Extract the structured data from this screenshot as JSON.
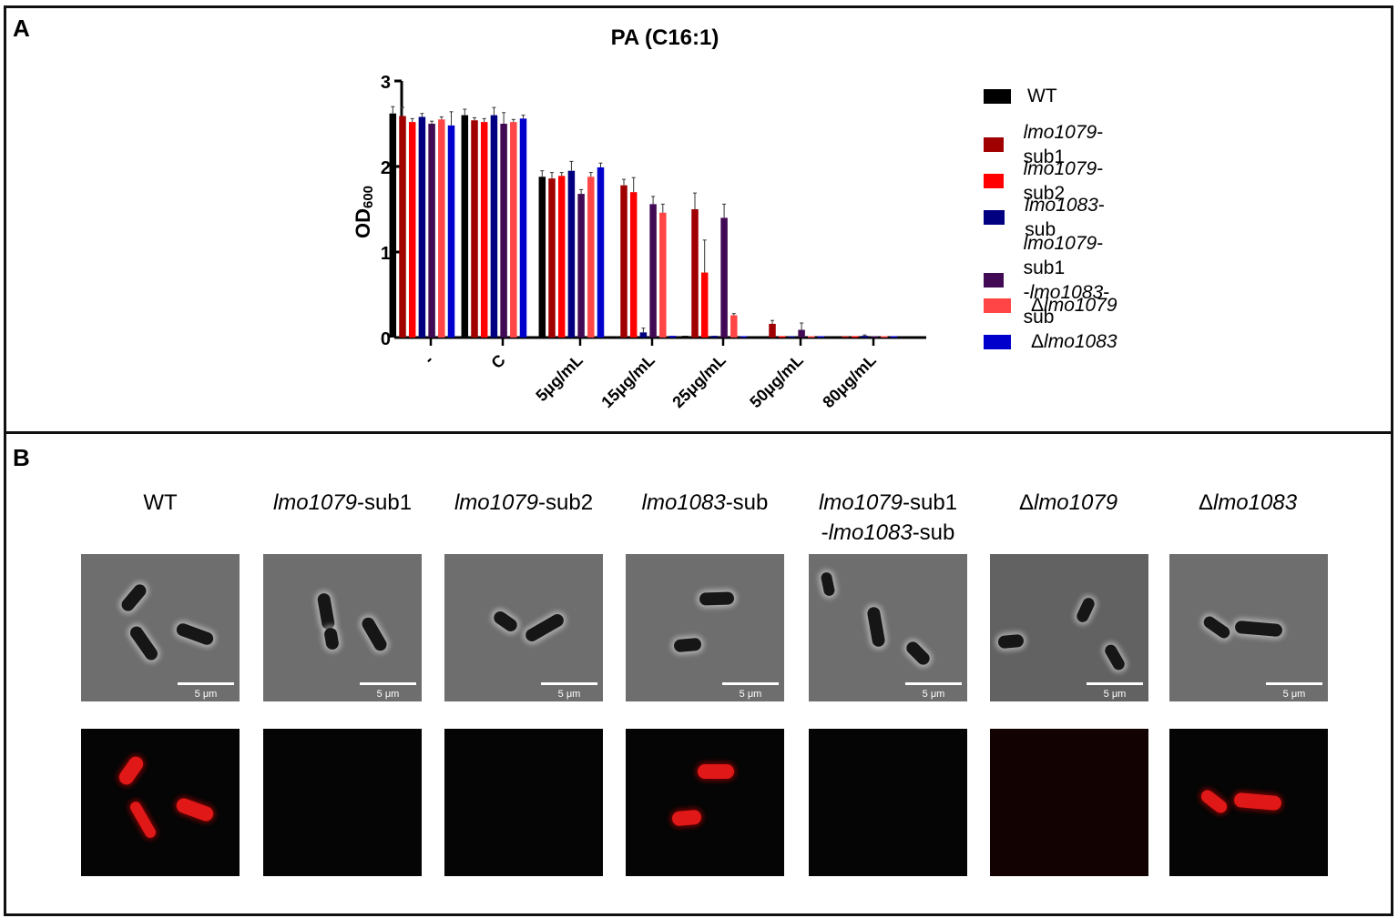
{
  "panels": {
    "a_letter": "A",
    "b_letter": "B"
  },
  "chart_data": {
    "type": "bar",
    "title": "PA (C16:1)",
    "xlabel": "",
    "ylabel": "OD600",
    "ylabel_main": "OD",
    "ylabel_sub": "600",
    "ylim": [
      0,
      3
    ],
    "yticks": [
      "0",
      "1",
      "2",
      "3"
    ],
    "grid": false,
    "legend_position": "right",
    "categories": [
      "-",
      "C",
      "5μg/mL",
      "15μg/mL",
      "25μg/mL",
      "50μg/mL",
      "80μg/mL"
    ],
    "series": [
      {
        "name": "WT",
        "color": "#000000",
        "values": [
          2.62,
          2.6,
          1.88,
          0.01,
          0.02,
          0.0,
          0.01
        ],
        "errors": [
          0.08,
          0.07,
          0.07,
          0.0,
          0.0,
          0.0,
          0.0
        ]
      },
      {
        "name": "lmo1079-sub1",
        "color": "#a00000",
        "values": [
          2.59,
          2.54,
          1.86,
          1.78,
          1.5,
          0.16,
          0.01
        ],
        "errors": [
          0.1,
          0.03,
          0.07,
          0.07,
          0.19,
          0.04,
          0.0
        ]
      },
      {
        "name": "lmo1079-sub2",
        "color": "#ff0000",
        "values": [
          2.52,
          2.52,
          1.89,
          1.7,
          0.76,
          0.01,
          0.01
        ],
        "errors": [
          0.04,
          0.04,
          0.04,
          0.17,
          0.38,
          0.0,
          0.0
        ]
      },
      {
        "name": "lmo1083-sub",
        "color": "#000080",
        "values": [
          2.58,
          2.6,
          1.95,
          0.06,
          0.02,
          0.0,
          0.02
        ],
        "errors": [
          0.04,
          0.09,
          0.11,
          0.05,
          0.0,
          0.0,
          0.01
        ]
      },
      {
        "name": "lmo1079-sub1-lmo1083-sub",
        "color": "#420a55",
        "values": [
          2.5,
          2.5,
          1.68,
          1.56,
          1.4,
          0.09,
          0.01
        ],
        "errors": [
          0.03,
          0.13,
          0.05,
          0.09,
          0.16,
          0.08,
          0.0
        ]
      },
      {
        "name": "Δlmo1079",
        "color": "#ff4545",
        "values": [
          2.55,
          2.52,
          1.88,
          1.46,
          0.26,
          0.0,
          0.0
        ],
        "errors": [
          0.03,
          0.03,
          0.05,
          0.1,
          0.02,
          0.0,
          0.0
        ]
      },
      {
        "name": "Δlmo1083",
        "color": "#0000cc",
        "values": [
          2.48,
          2.56,
          1.99,
          0.02,
          0.01,
          0.0,
          0.0
        ],
        "errors": [
          0.16,
          0.04,
          0.05,
          0.0,
          0.0,
          0.0,
          0.0
        ]
      }
    ]
  },
  "legend": [
    {
      "italic": "",
      "suffix": "WT",
      "prefix": "",
      "color": "#000000"
    },
    {
      "italic": "lmo1079",
      "suffix": "-sub1",
      "prefix": "",
      "color": "#a00000"
    },
    {
      "italic": "lmo1079",
      "suffix": "-sub2",
      "prefix": "",
      "color": "#ff0000"
    },
    {
      "italic": "lmo1083",
      "suffix": "-sub",
      "prefix": "",
      "color": "#000080"
    },
    {
      "italic": "lmo1079",
      "suffix": "-sub1",
      "prefix": "",
      "line2_prefix": "-",
      "line2_italic": "lmo1083",
      "line2_suffix": "-sub",
      "color": "#420a55"
    },
    {
      "italic": "lmo1079",
      "suffix": "",
      "prefix": "Δ",
      "color": "#ff4545"
    },
    {
      "italic": "lmo1083",
      "suffix": "",
      "prefix": "Δ",
      "color": "#0000cc"
    }
  ],
  "microscopy": {
    "scale_bar_label": "5 μm",
    "strains": [
      {
        "prefix": "",
        "italic": "",
        "suffix": "WT"
      },
      {
        "prefix": "",
        "italic": "lmo1079",
        "suffix": "-sub1"
      },
      {
        "prefix": "",
        "italic": "lmo1079",
        "suffix": "-sub2"
      },
      {
        "prefix": "",
        "italic": "lmo1083",
        "suffix": "-sub"
      },
      {
        "prefix": "",
        "italic": "lmo1079",
        "suffix": "-sub1",
        "line2_prefix": "-",
        "line2_italic": "lmo1083",
        "line2_suffix": "-sub"
      },
      {
        "prefix": "Δ",
        "italic": "lmo1079",
        "suffix": ""
      },
      {
        "prefix": "Δ",
        "italic": "lmo1083",
        "suffix": ""
      }
    ]
  }
}
